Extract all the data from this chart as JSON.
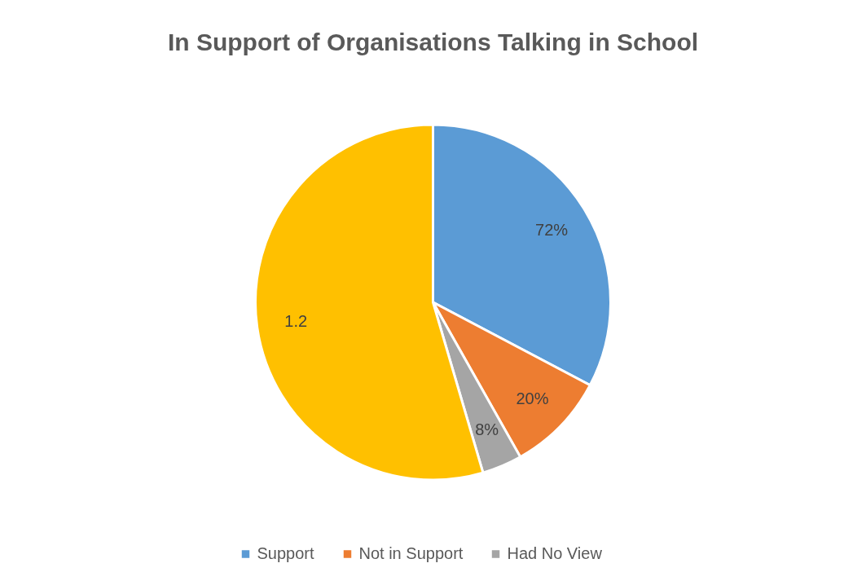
{
  "chart_data": {
    "type": "pie",
    "title": "In Support of Organisations Talking in School",
    "categories": [
      "Support",
      "Not in Support",
      "Had No View",
      null
    ],
    "values": [
      0.72,
      0.2,
      0.08,
      1.2
    ],
    "value_labels": [
      "72%",
      "20%",
      "8%",
      "1.2"
    ],
    "colors": [
      "#5b9bd5",
      "#ed7d31",
      "#a5a5a5",
      "#ffc000"
    ],
    "legend": "bottom"
  }
}
